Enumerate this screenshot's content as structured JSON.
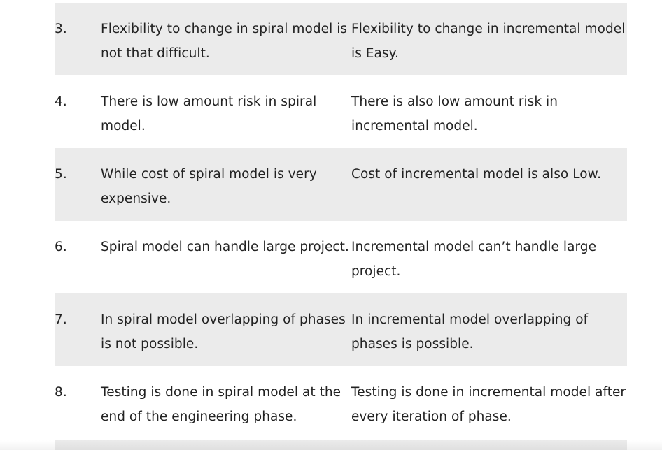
{
  "table": {
    "rows": [
      {
        "num": "3.",
        "spiral": "Flexibility to change in spiral model is not that difficult.",
        "incremental": "Flexibility to change in incremental model is Easy."
      },
      {
        "num": "4.",
        "spiral": "There is low amount risk in spiral model.",
        "incremental": "There is also low amount risk in incremental model."
      },
      {
        "num": "5.",
        "spiral": "While cost of spiral model is very expensive.",
        "incremental": "Cost of incremental model is also Low."
      },
      {
        "num": "6.",
        "spiral": "Spiral model can handle large project.",
        "incremental": "Incremental model can’t handle large project."
      },
      {
        "num": "7.",
        "spiral": "In spiral model overlapping of phases is not possible.",
        "incremental": "In incremental model overlapping of phases is possible."
      },
      {
        "num": "8.",
        "spiral": "Testing is done in spiral model at the end of the engineering phase.",
        "incremental": "Testing is done in incremental model after every iteration of phase."
      }
    ]
  }
}
